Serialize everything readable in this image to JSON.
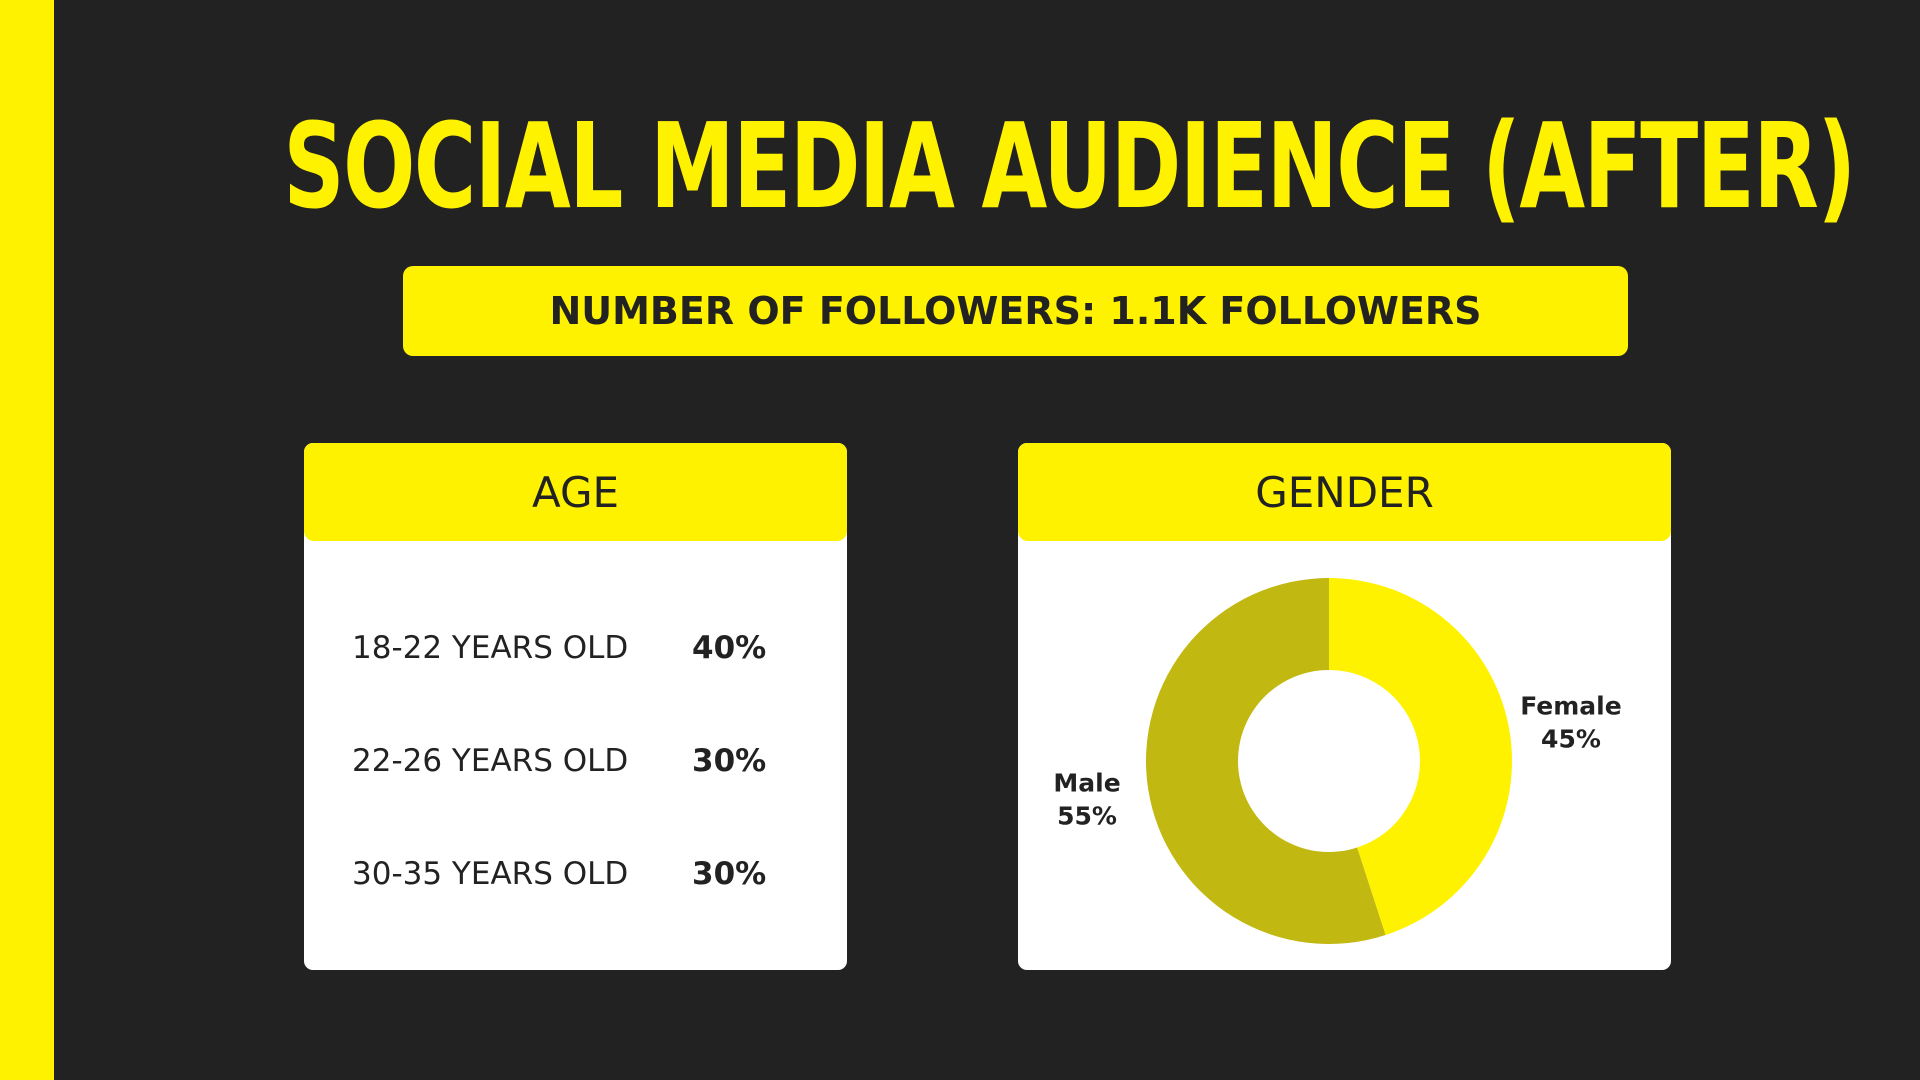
{
  "colors": {
    "accent": "#fff200",
    "dark": "#222222",
    "male": "#c2b812",
    "white": "#ffffff"
  },
  "title": "SOCIAL MEDIA AUDIENCE (AFTER)",
  "followers_label": "NUMBER OF FOLLOWERS: 1.1K FOLLOWERS",
  "age": {
    "heading": "AGE",
    "rows": [
      {
        "label": "18-22 YEARS OLD",
        "value": "40%"
      },
      {
        "label": "22-26 YEARS OLD",
        "value": "30%"
      },
      {
        "label": "30-35 YEARS OLD",
        "value": "30%"
      }
    ]
  },
  "gender": {
    "heading": "GENDER"
  },
  "chart_data": {
    "type": "pie",
    "donut": true,
    "slices": [
      {
        "name": "Female",
        "value": 45,
        "label": "45%",
        "color": "#fff200"
      },
      {
        "name": "Male",
        "value": 55,
        "label": "55%",
        "color": "#c2b812"
      }
    ]
  }
}
